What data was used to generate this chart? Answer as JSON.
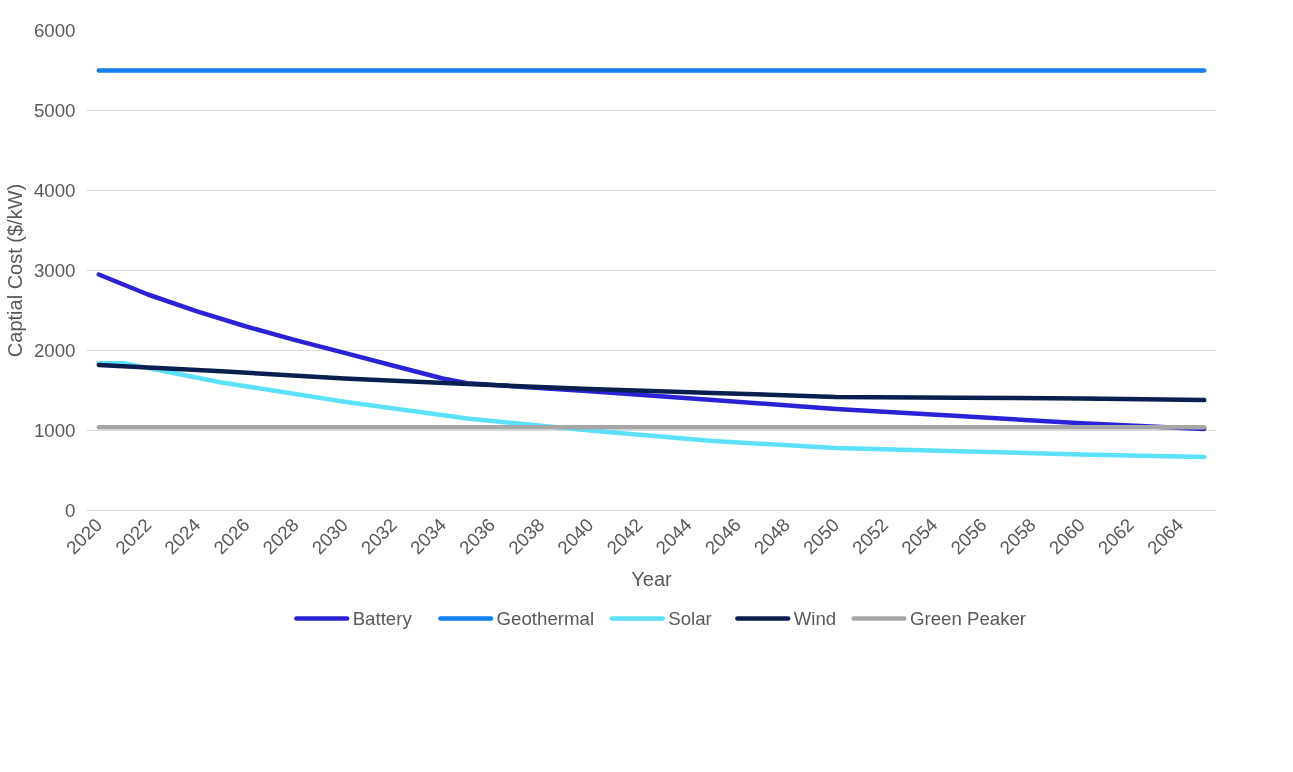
{
  "chart_data": {
    "type": "line",
    "xlabel": "Year",
    "ylabel": "Captial Cost ($/kW)",
    "xlim": [
      2019.5,
      2065.5
    ],
    "xticks": [
      2020,
      2022,
      2024,
      2026,
      2028,
      2030,
      2032,
      2034,
      2036,
      2038,
      2040,
      2042,
      2044,
      2046,
      2048,
      2050,
      2052,
      2054,
      2056,
      2058,
      2060,
      2062,
      2064
    ],
    "ylim": [
      0,
      6000
    ],
    "yticks": [
      0,
      1000,
      2000,
      3000,
      4000,
      5000,
      6000
    ],
    "grid": "y",
    "legend": "bottom",
    "marker": "none",
    "line_style": "solid",
    "series": [
      {
        "name": "Battery",
        "color": "#2b22d6",
        "x": [
          2020,
          2022,
          2024,
          2026,
          2028,
          2030,
          2032,
          2034,
          2035,
          2040,
          2045,
          2050,
          2055,
          2060,
          2065
        ],
        "values": [
          2950,
          2700,
          2490,
          2300,
          2130,
          1970,
          1810,
          1650,
          1590,
          1490,
          1380,
          1270,
          1180,
          1090,
          1020
        ]
      },
      {
        "name": "Geothermal",
        "color": "#127ff2",
        "x": [
          2020,
          2065
        ],
        "values": [
          5500,
          5500
        ]
      },
      {
        "name": "Solar",
        "color": "#5ce1fb",
        "x": [
          2020,
          2021,
          2025,
          2030,
          2035,
          2040,
          2045,
          2050,
          2055,
          2060,
          2065
        ],
        "values": [
          1840,
          1840,
          1600,
          1360,
          1150,
          1000,
          870,
          780,
          740,
          700,
          670
        ]
      },
      {
        "name": "Wind",
        "color": "#0b1f4f",
        "x": [
          2020,
          2025,
          2030,
          2035,
          2040,
          2045,
          2050,
          2055,
          2060,
          2065
        ],
        "values": [
          1820,
          1740,
          1650,
          1580,
          1520,
          1470,
          1420,
          1410,
          1400,
          1380
        ]
      },
      {
        "name": "Green Peaker",
        "color": "#a6a6a6",
        "x": [
          2020,
          2065
        ],
        "values": [
          1040,
          1040
        ]
      }
    ]
  }
}
